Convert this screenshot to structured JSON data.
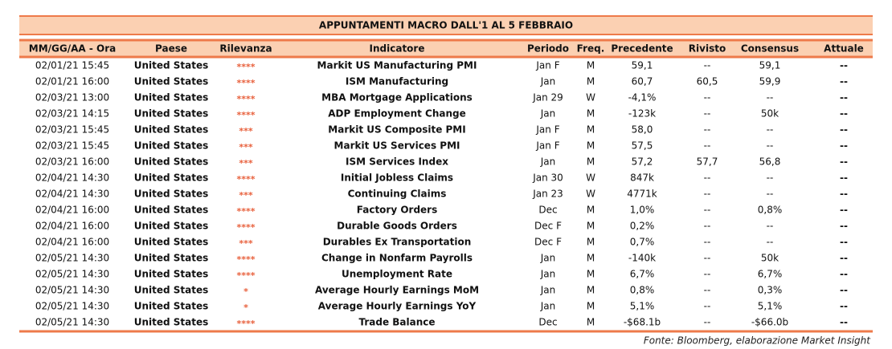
{
  "header": {
    "title": "APPUNTAMENTI MACRO DALL'1 AL 5 FEBBRAIO"
  },
  "table": {
    "columns": [
      "MM/GG/AA - Ora",
      "Paese",
      "Rilevanza",
      "Indicatore",
      "Periodo",
      "Freq.",
      "Precedente",
      "Rivisto",
      "Consensus",
      "Attuale"
    ],
    "rows": [
      [
        "02/01/21 15:45",
        "United States",
        "****",
        "Markit US Manufacturing PMI",
        "Jan F",
        "M",
        "59,1",
        "--",
        "59,1",
        "--"
      ],
      [
        "02/01/21 16:00",
        "United States",
        "****",
        "ISM Manufacturing",
        "Jan",
        "M",
        "60,7",
        "60,5",
        "59,9",
        "--"
      ],
      [
        "02/03/21 13:00",
        "United States",
        "****",
        "MBA Mortgage Applications",
        "Jan 29",
        "W",
        "-4,1%",
        "--",
        "--",
        "--"
      ],
      [
        "02/03/21 14:15",
        "United States",
        "****",
        "ADP Employment Change",
        "Jan",
        "M",
        "-123k",
        "--",
        "50k",
        "--"
      ],
      [
        "02/03/21 15:45",
        "United States",
        "***",
        "Markit US Composite PMI",
        "Jan F",
        "M",
        "58,0",
        "--",
        "--",
        "--"
      ],
      [
        "02/03/21 15:45",
        "United States",
        "***",
        "Markit US Services PMI",
        "Jan F",
        "M",
        "57,5",
        "--",
        "--",
        "--"
      ],
      [
        "02/03/21 16:00",
        "United States",
        "***",
        "ISM Services Index",
        "Jan",
        "M",
        "57,2",
        "57,7",
        "56,8",
        "--"
      ],
      [
        "02/04/21 14:30",
        "United States",
        "****",
        "Initial Jobless Claims",
        "Jan 30",
        "W",
        "847k",
        "--",
        "--",
        "--"
      ],
      [
        "02/04/21 14:30",
        "United States",
        "***",
        "Continuing Claims",
        "Jan 23",
        "W",
        "4771k",
        "--",
        "--",
        "--"
      ],
      [
        "02/04/21 16:00",
        "United States",
        "****",
        "Factory Orders",
        "Dec",
        "M",
        "1,0%",
        "--",
        "0,8%",
        "--"
      ],
      [
        "02/04/21 16:00",
        "United States",
        "****",
        "Durable Goods Orders",
        "Dec F",
        "M",
        "0,2%",
        "--",
        "--",
        "--"
      ],
      [
        "02/04/21 16:00",
        "United States",
        "***",
        "Durables Ex Transportation",
        "Dec F",
        "M",
        "0,7%",
        "--",
        "--",
        "--"
      ],
      [
        "02/05/21 14:30",
        "United States",
        "****",
        "Change in Nonfarm Payrolls",
        "Jan",
        "M",
        "-140k",
        "--",
        "50k",
        "--"
      ],
      [
        "02/05/21 14:30",
        "United States",
        "****",
        "Unemployment Rate",
        "Jan",
        "M",
        "6,7%",
        "--",
        "6,7%",
        "--"
      ],
      [
        "02/05/21 14:30",
        "United States",
        "*",
        "Average Hourly Earnings MoM",
        "Jan",
        "M",
        "0,8%",
        "--",
        "0,3%",
        "--"
      ],
      [
        "02/05/21 14:30",
        "United States",
        "*",
        "Average Hourly Earnings YoY",
        "Jan",
        "M",
        "5,1%",
        "--",
        "5,1%",
        "--"
      ],
      [
        "02/05/21 14:30",
        "United States",
        "****",
        "Trade Balance",
        "Dec",
        "M",
        "-$68.1b",
        "--",
        "-$66.0b",
        "--"
      ]
    ]
  },
  "footer": {
    "source": "Fonte: Bloomberg, elaborazione Market Insight"
  }
}
